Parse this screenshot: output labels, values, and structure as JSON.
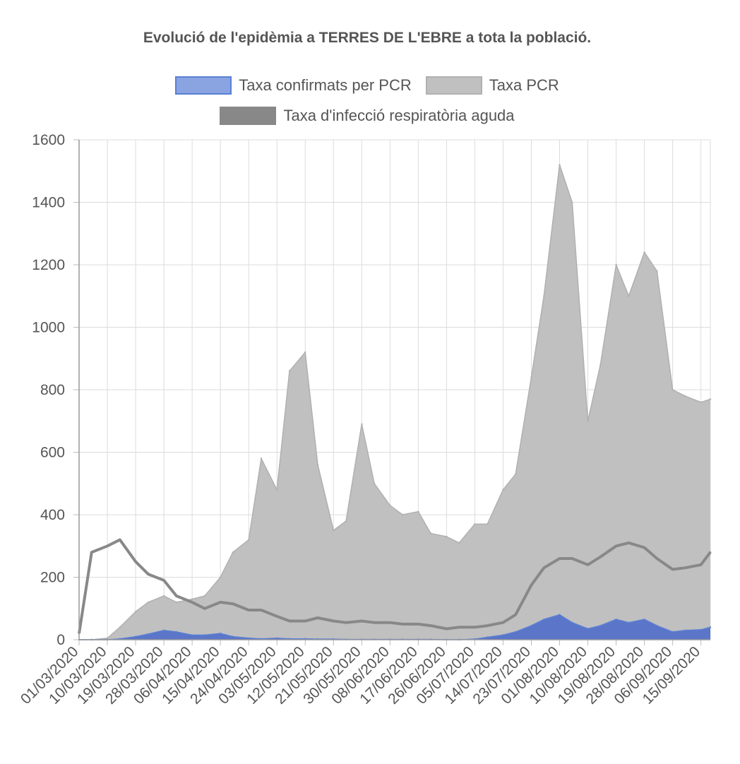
{
  "chart_data": {
    "type": "area",
    "title": "Evolució de l'epidèmia a TERRES DE L'EBRE a tota la població.",
    "ylim": [
      0,
      1600
    ],
    "yticks": [
      0,
      200,
      400,
      600,
      800,
      1000,
      1200,
      1400,
      1600
    ],
    "grid": true,
    "legend_position": "top",
    "x_tick_labels": [
      "01/03/2020",
      "10/03/2020",
      "19/03/2020",
      "28/03/2020",
      "06/04/2020",
      "15/04/2020",
      "24/04/2020",
      "03/05/2020",
      "12/05/2020",
      "21/05/2020",
      "30/05/2020",
      "08/06/2020",
      "17/06/2020",
      "26/06/2020",
      "05/07/2020",
      "14/07/2020",
      "23/07/2020",
      "01/08/2020",
      "10/08/2020",
      "19/08/2020",
      "28/08/2020",
      "06/09/2020",
      "15/09/2020"
    ],
    "x": [
      "01/03/2020",
      "05/03/2020",
      "10/03/2020",
      "14/03/2020",
      "19/03/2020",
      "23/03/2020",
      "28/03/2020",
      "01/04/2020",
      "06/04/2020",
      "10/04/2020",
      "15/04/2020",
      "19/04/2020",
      "24/04/2020",
      "28/04/2020",
      "03/05/2020",
      "07/05/2020",
      "12/05/2020",
      "16/05/2020",
      "21/05/2020",
      "25/05/2020",
      "30/05/2020",
      "03/06/2020",
      "08/06/2020",
      "12/06/2020",
      "17/06/2020",
      "21/06/2020",
      "26/06/2020",
      "30/06/2020",
      "05/07/2020",
      "09/07/2020",
      "14/07/2020",
      "18/07/2020",
      "23/07/2020",
      "27/07/2020",
      "01/08/2020",
      "05/08/2020",
      "10/08/2020",
      "14/08/2020",
      "19/08/2020",
      "23/08/2020",
      "28/08/2020",
      "01/09/2020",
      "06/09/2020",
      "10/09/2020",
      "15/09/2020",
      "18/09/2020"
    ],
    "series": [
      {
        "name": "Taxa confirmats per PCR",
        "color": "#5b7fd4",
        "fill": "#5b75c8",
        "values": [
          0,
          0,
          0,
          3,
          10,
          18,
          30,
          25,
          15,
          15,
          20,
          10,
          5,
          3,
          5,
          3,
          3,
          2,
          2,
          1,
          1,
          1,
          1,
          1,
          1,
          1,
          0,
          0,
          2,
          8,
          15,
          25,
          45,
          65,
          80,
          55,
          35,
          45,
          65,
          55,
          65,
          45,
          25,
          30,
          32,
          40
        ]
      },
      {
        "name": "Taxa PCR",
        "color": "#b0b0b0",
        "fill": "#c0c0c0",
        "values": [
          0,
          0,
          5,
          40,
          90,
          120,
          140,
          120,
          130,
          140,
          200,
          280,
          320,
          580,
          480,
          860,
          920,
          560,
          350,
          380,
          690,
          500,
          430,
          400,
          410,
          340,
          330,
          310,
          370,
          370,
          480,
          530,
          840,
          1100,
          1520,
          1400,
          700,
          880,
          1200,
          1100,
          1240,
          1180,
          800,
          780,
          760,
          770
        ]
      },
      {
        "name": "Taxa d'infecció respiratòria aguda",
        "color": "#888888",
        "values": [
          20,
          280,
          300,
          320,
          250,
          210,
          190,
          140,
          120,
          100,
          120,
          115,
          95,
          95,
          75,
          60,
          60,
          70,
          60,
          55,
          60,
          55,
          55,
          50,
          50,
          45,
          35,
          40,
          40,
          45,
          55,
          80,
          175,
          230,
          260,
          260,
          240,
          265,
          300,
          310,
          295,
          260,
          225,
          230,
          240,
          280
        ]
      }
    ]
  }
}
